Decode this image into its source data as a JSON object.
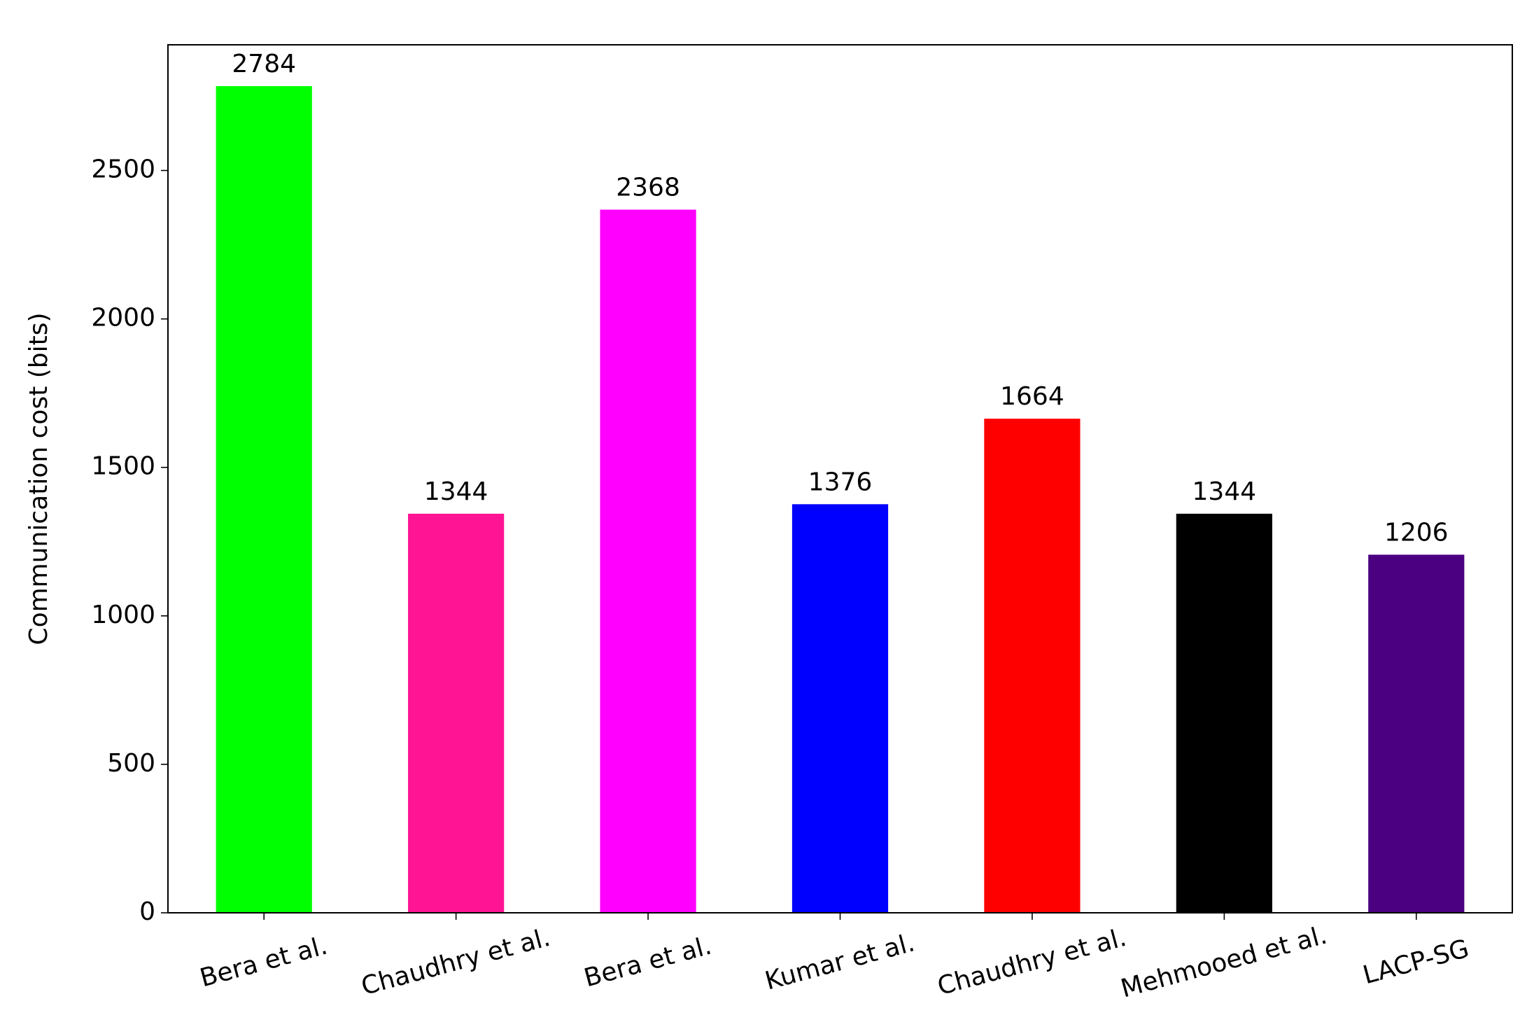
{
  "chart_data": {
    "type": "bar",
    "y_label": "Communication cost (bits)",
    "categories": [
      "Bera et al.",
      "Chaudhry et al.",
      "Bera et al.",
      "Kumar et al.",
      "Chaudhry et al.",
      "Mehmooed et al.",
      "LACP-SG"
    ],
    "values": [
      2784,
      1344,
      2368,
      1376,
      1664,
      1344,
      1206
    ],
    "colors": [
      "#00ff00",
      "#ff1493",
      "#ff00ff",
      "#0000ff",
      "#ff0000",
      "#000000",
      "#4b0082"
    ],
    "ylim": [
      0,
      2923.2
    ],
    "yticks": [
      0,
      500,
      1000,
      1500,
      2000,
      2500
    ],
    "grid": false
  }
}
